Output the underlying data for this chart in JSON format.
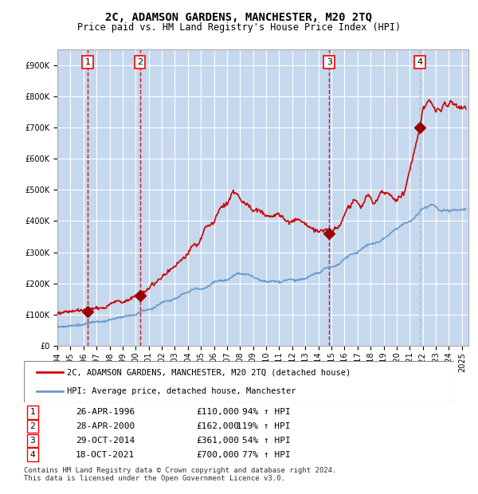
{
  "title": "2C, ADAMSON GARDENS, MANCHESTER, M20 2TQ",
  "subtitle": "Price paid vs. HM Land Registry's House Price Index (HPI)",
  "ylabel": "",
  "ylim": [
    0,
    950000
  ],
  "xlim_start": 1994.0,
  "xlim_end": 2025.5,
  "background_color": "#dce9f5",
  "plot_bg": "#dce9f5",
  "grid_color": "#ffffff",
  "sale_points": [
    {
      "num": 1,
      "date_year": 1996.32,
      "price": 110000,
      "date_str": "26-APR-1996",
      "pct": "94%"
    },
    {
      "num": 2,
      "date_year": 2000.32,
      "price": 162000,
      "date_str": "28-APR-2000",
      "pct": "119%"
    },
    {
      "num": 3,
      "date_year": 2014.83,
      "price": 361000,
      "date_str": "29-OCT-2014",
      "pct": "54%"
    },
    {
      "num": 4,
      "date_year": 2021.8,
      "price": 700000,
      "date_str": "18-OCT-2021",
      "pct": "77%"
    }
  ],
  "legend_line1": "2C, ADAMSON GARDENS, MANCHESTER, M20 2TQ (detached house)",
  "legend_line2": "HPI: Average price, detached house, Manchester",
  "footer": "Contains HM Land Registry data © Crown copyright and database right 2024.\nThis data is licensed under the Open Government Licence v3.0.",
  "line_color_red": "#cc0000",
  "line_color_blue": "#6699cc",
  "marker_color": "#990000",
  "vline_color_red": "#cc0000",
  "vline_color_blue": "#aabbcc",
  "shade_color": "#c5d8ee"
}
